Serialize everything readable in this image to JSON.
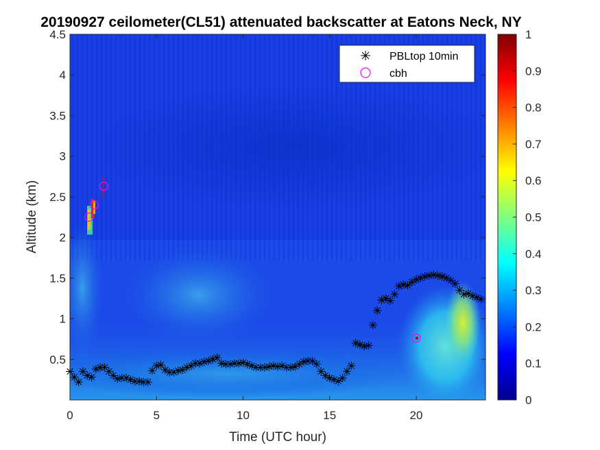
{
  "chart_data": {
    "type": "heatmap",
    "title": "20190927 ceilometer(CL51) attenuated backscatter at Eatons Neck, NY",
    "xlabel": "Time (UTC hour)",
    "ylabel": "Altitude (km)",
    "xlim": [
      0,
      24
    ],
    "ylim": [
      0,
      4.5
    ],
    "xticks": [
      "0",
      "5",
      "10",
      "15",
      "20"
    ],
    "yticks": [
      "0.5",
      "1",
      "1.5",
      "2",
      "2.5",
      "3",
      "3.5",
      "4",
      "4.5"
    ],
    "colorbar": {
      "range": [
        0,
        1
      ],
      "ticks": [
        "0",
        "0.1",
        "0.2",
        "0.3",
        "0.4",
        "0.5",
        "0.6",
        "0.7",
        "0.8",
        "0.9",
        "1"
      ],
      "colormap": "jet"
    },
    "legend": {
      "position": "top-right",
      "entries": [
        {
          "label": "PBLtop 10min",
          "marker": "asterisk",
          "color": "#000000"
        },
        {
          "label": "cbh",
          "marker": "circle",
          "color": "#ff00ff"
        }
      ]
    },
    "series": [
      {
        "name": "PBLtop 10min",
        "x": [
          0.0,
          0.25,
          0.5,
          0.75,
          1.0,
          1.25,
          1.5,
          1.75,
          2.0,
          2.25,
          2.5,
          2.75,
          3.0,
          3.25,
          3.5,
          3.75,
          4.0,
          4.25,
          4.5,
          4.75,
          5.0,
          5.25,
          5.5,
          5.75,
          6.0,
          6.25,
          6.5,
          6.75,
          7.0,
          7.25,
          7.5,
          7.75,
          8.0,
          8.25,
          8.5,
          8.75,
          9.0,
          9.25,
          9.5,
          9.75,
          10.0,
          10.25,
          10.5,
          10.75,
          11.0,
          11.25,
          11.5,
          11.75,
          12.0,
          12.25,
          12.5,
          12.75,
          13.0,
          13.25,
          13.5,
          13.75,
          14.0,
          14.25,
          14.5,
          14.75,
          15.0,
          15.25,
          15.5,
          15.75,
          16.0,
          16.25,
          16.5,
          16.75,
          17.0,
          17.25,
          17.5,
          17.75,
          18.0,
          18.25,
          18.5,
          18.75,
          19.0,
          19.25,
          19.5,
          19.75,
          20.0,
          20.25,
          20.5,
          20.75,
          21.0,
          21.25,
          21.5,
          21.75,
          22.0,
          22.25,
          22.5,
          22.75,
          23.0,
          23.25,
          23.5,
          23.75
        ],
        "y": [
          0.35,
          0.28,
          0.22,
          0.35,
          0.3,
          0.28,
          0.38,
          0.4,
          0.4,
          0.35,
          0.3,
          0.26,
          0.27,
          0.27,
          0.25,
          0.23,
          0.23,
          0.22,
          0.22,
          0.36,
          0.42,
          0.43,
          0.37,
          0.34,
          0.34,
          0.36,
          0.37,
          0.4,
          0.42,
          0.45,
          0.45,
          0.47,
          0.48,
          0.5,
          0.52,
          0.45,
          0.44,
          0.44,
          0.45,
          0.45,
          0.46,
          0.44,
          0.42,
          0.4,
          0.4,
          0.4,
          0.41,
          0.42,
          0.41,
          0.42,
          0.4,
          0.4,
          0.41,
          0.44,
          0.47,
          0.48,
          0.48,
          0.44,
          0.35,
          0.3,
          0.27,
          0.25,
          0.23,
          0.27,
          0.35,
          0.42,
          0.7,
          0.68,
          0.66,
          0.67,
          0.92,
          1.1,
          1.23,
          1.25,
          1.22,
          1.3,
          1.4,
          1.42,
          1.41,
          1.45,
          1.48,
          1.5,
          1.52,
          1.53,
          1.54,
          1.53,
          1.52,
          1.5,
          1.47,
          1.43,
          1.35,
          1.3,
          1.31,
          1.28,
          1.26,
          1.24
        ]
      },
      {
        "name": "cbh",
        "x": [
          1.1,
          1.4,
          1.95,
          20.0
        ],
        "y": [
          2.25,
          2.4,
          2.63,
          0.76
        ]
      }
    ]
  }
}
